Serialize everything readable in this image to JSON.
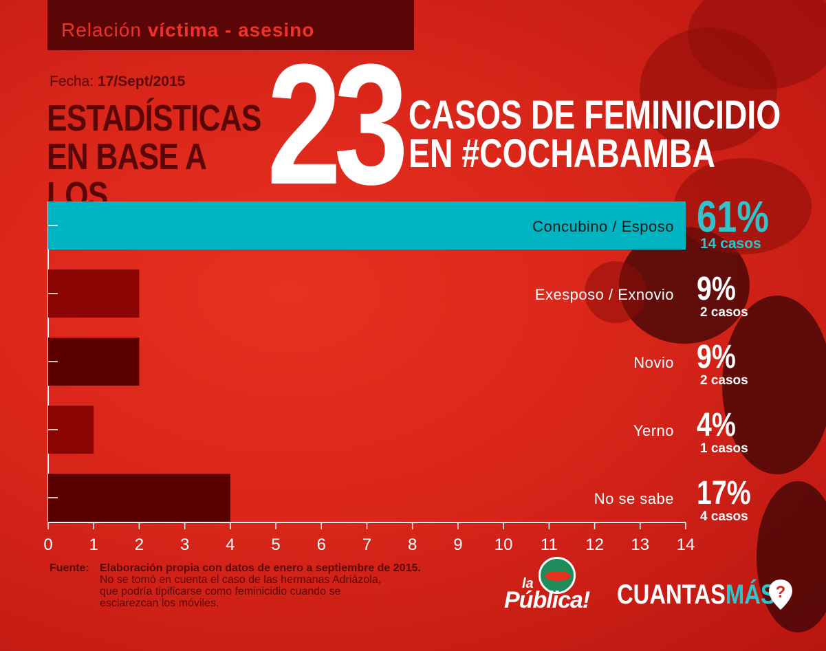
{
  "header": {
    "label_plain": "Relación ",
    "label_bold": "víctima - asesino",
    "date_label": "Fecha:",
    "date_value": "17/Sept/2015",
    "headline_left_line1": "ESTADÍSTICAS",
    "headline_left_line2": "EN BASE A LOS",
    "big_number": "23",
    "headline_right_line1": "CASOS DE FEMINICIDIO",
    "headline_right_line2": "EN #COCHABAMBA"
  },
  "colors": {
    "background": "#d9261a",
    "highlight_bar": "#00b4c2",
    "bar_light": "#8a0404",
    "bar_dark": "#5a0000",
    "highlight_text": "#2fc4cc",
    "text_white": "#ffffff"
  },
  "chart_data": {
    "type": "bar",
    "orientation": "horizontal",
    "categories": [
      "Concubino / Esposo",
      "Exesposo / Exnovio",
      "Novio",
      "Yerno",
      "No se sabe"
    ],
    "values": [
      14,
      2,
      2,
      1,
      4
    ],
    "percent_labels": [
      "61%",
      "9%",
      "9%",
      "4%",
      "17%"
    ],
    "case_labels": [
      "14 casos",
      "2 casos",
      "2 casos",
      "1 casos",
      "4 casos"
    ],
    "highlight_index": 0,
    "xlim": [
      0,
      14
    ],
    "xticks": [
      "0",
      "1",
      "2",
      "3",
      "4",
      "5",
      "6",
      "7",
      "8",
      "9",
      "10",
      "11",
      "12",
      "13",
      "14"
    ],
    "grid": false
  },
  "footer": {
    "source_label": "Fuente:",
    "source_line1": "Elaboración propia con datos de enero a septiembre de 2015.",
    "source_line2": "No se tomó en cuenta el caso de las hermanas Adriázola,",
    "source_line3": "que podría tipificarse como feminicidio cuando se",
    "source_line4": "esclarezcan los móviles.",
    "logo1_small": "la",
    "logo1_main": "Pública!",
    "logo2_white": "CUANTAS",
    "logo2_color": "MÁS",
    "pin_icon": "question-pin-icon"
  }
}
